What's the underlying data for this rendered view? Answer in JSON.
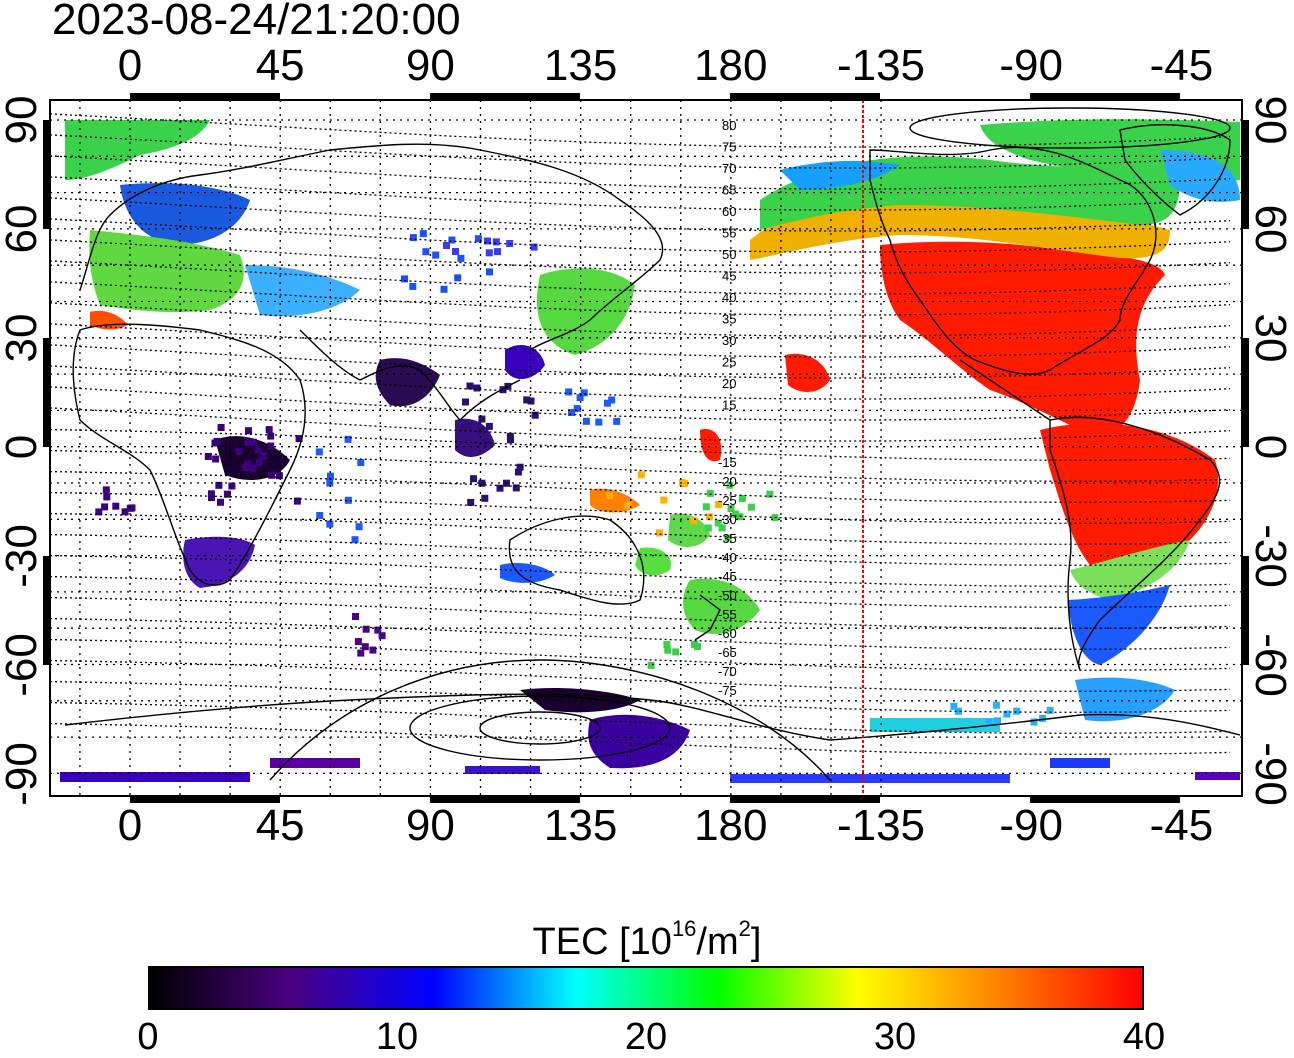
{
  "timestamp": "2023-08-24/21:20:00",
  "top_axis_ticks": [
    "0",
    "45",
    "90",
    "135",
    "180",
    "-135",
    "-90",
    "-45"
  ],
  "bottom_axis_ticks": [
    "0",
    "45",
    "90",
    "135",
    "180",
    "-135",
    "-90",
    "-45"
  ],
  "left_axis_ticks": [
    "90",
    "60",
    "30",
    "0",
    "-30",
    "-60",
    "-90"
  ],
  "right_axis_ticks": [
    "90",
    "60",
    "30",
    "0",
    "-30",
    "-60",
    "-90"
  ],
  "contour_labels_north": [
    "80",
    "75",
    "70",
    "65",
    "60",
    "55",
    "50",
    "45",
    "40",
    "35",
    "30",
    "25",
    "20",
    "15"
  ],
  "contour_labels_south": [
    "-15",
    "-20",
    "-25",
    "-30",
    "-35",
    "-40",
    "-45",
    "-50",
    "-55",
    "-60",
    "-65",
    "-70",
    "-75"
  ],
  "colorbar": {
    "title_prefix": "TEC  [10",
    "title_exp1": "16",
    "title_mid": "/m",
    "title_exp2": "2",
    "title_suffix": "]",
    "ticks": [
      "0",
      "10",
      "20",
      "30",
      "40"
    ],
    "min": 0,
    "max": 40,
    "colors": [
      "#000000",
      "#4b0082",
      "#0000ff",
      "#00ffff",
      "#00ff00",
      "#ffff00",
      "#ff8000",
      "#ff0000"
    ]
  },
  "terminator_line_color": "#ff0000",
  "colors": {
    "high_tec": "#ff1a00",
    "mid_tec": "#22d44a",
    "low_tec": "#3a00a0"
  }
}
